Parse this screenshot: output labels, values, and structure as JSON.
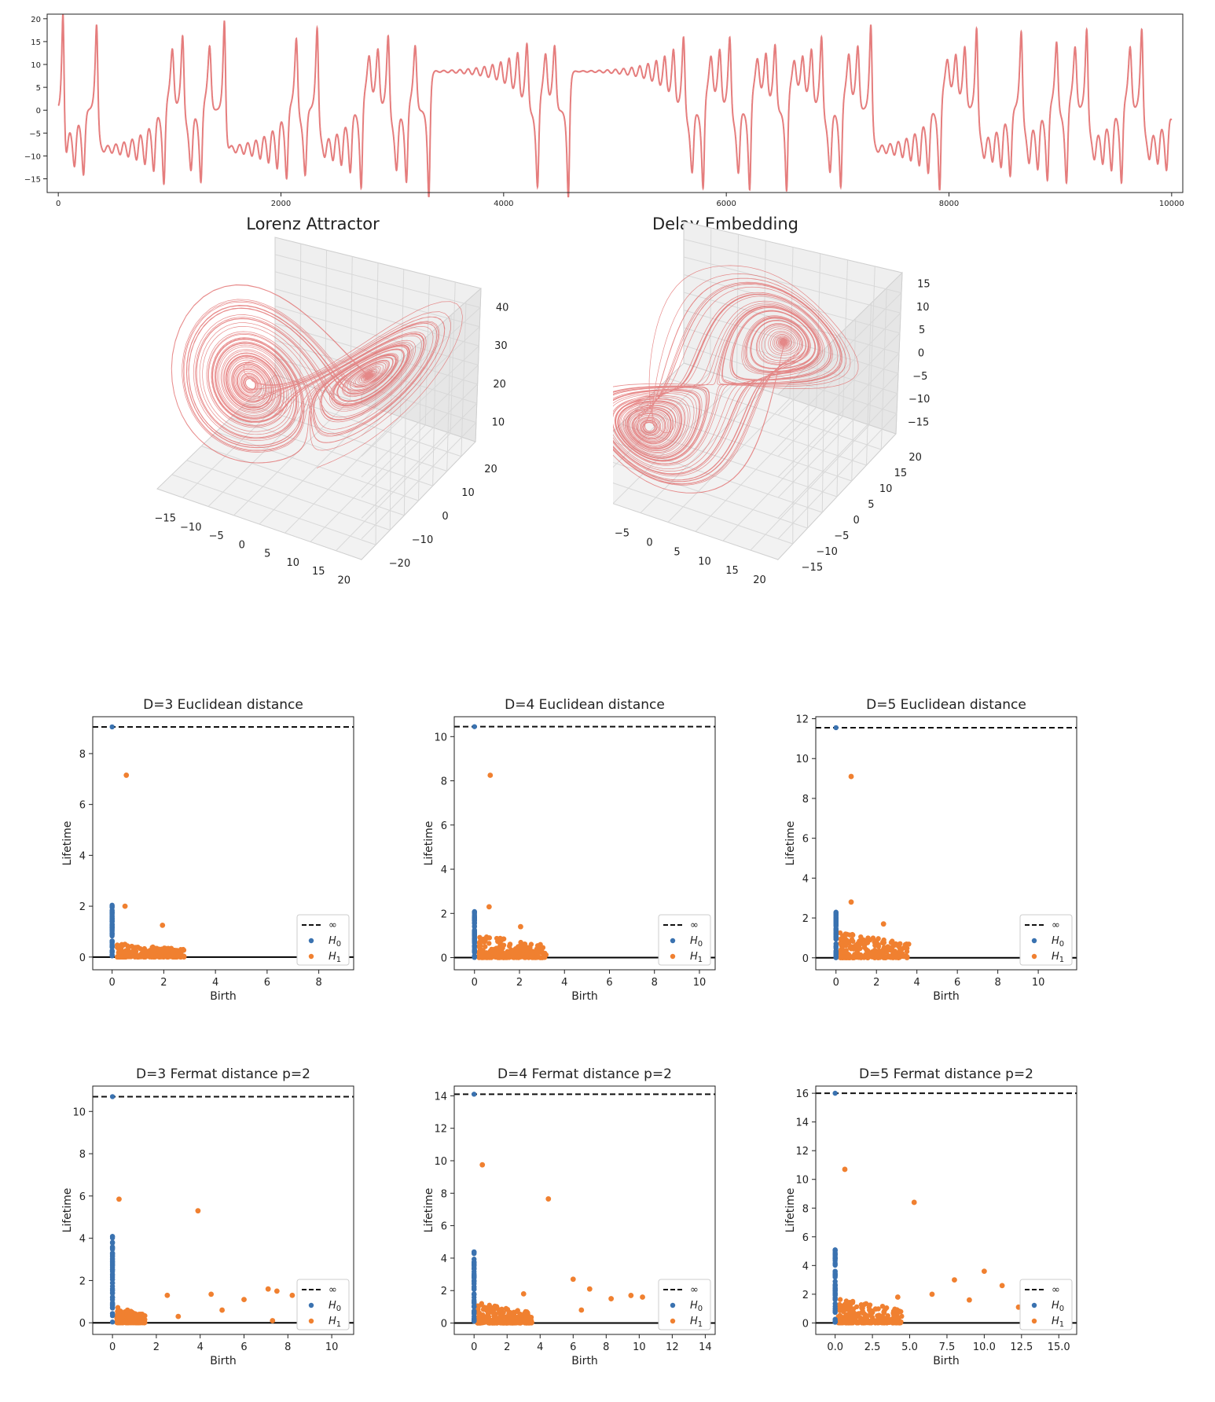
{
  "colors": {
    "trace": "#e06666",
    "h0": "#3a72b0",
    "h1": "#f08030",
    "inf": "#111111"
  },
  "chart_data": [
    {
      "id": "time-series",
      "type": "line",
      "title": "",
      "xlim": [
        -100,
        10100
      ],
      "ylim": [
        -18,
        21
      ],
      "xticks": [
        0,
        2000,
        4000,
        6000,
        8000,
        10000
      ],
      "yticks": [
        -15,
        -10,
        -5,
        0,
        5,
        10,
        15,
        20
      ],
      "description_samples": 10000
    },
    {
      "id": "lorenz-attractor",
      "type": "line3d",
      "title": "Lorenz Attractor",
      "xticks": [
        -15,
        -10,
        -5,
        0,
        5,
        10,
        15,
        20
      ],
      "yticks": [
        -20,
        -10,
        0,
        10,
        20
      ],
      "zticks": [
        10,
        20,
        30,
        40
      ]
    },
    {
      "id": "delay-embedding",
      "type": "line3d",
      "title": "Delay Embedding",
      "xticks": [
        -15,
        -10,
        -5,
        0,
        5,
        10,
        15,
        20
      ],
      "yticks": [
        -15,
        -10,
        -5,
        0,
        5,
        10,
        15,
        20
      ],
      "zticks": [
        -15,
        -10,
        -5,
        0,
        5,
        10,
        15
      ]
    },
    {
      "id": "pd-d3-euclid",
      "type": "scatter",
      "title": "D=3 Euclidean distance",
      "xlabel": "Birth",
      "ylabel": "Lifetime",
      "xlim": [
        -0.75,
        9.35
      ],
      "ylim": [
        -0.5,
        9.45
      ],
      "xticks": [
        0,
        2,
        4,
        6,
        8
      ],
      "yticks": [
        0,
        2,
        4,
        6,
        8
      ],
      "inf": 9.05,
      "legend": [
        "∞",
        "H0",
        "H1"
      ],
      "legend_loc": "lower right",
      "h0_max": 2.05,
      "h1_outliers": [
        [
          0.55,
          7.15
        ],
        [
          0.5,
          2.0
        ],
        [
          1.95,
          1.25
        ]
      ],
      "h1_cluster": {
        "xmax": 2.8,
        "ymax": 0.6
      }
    },
    {
      "id": "pd-d4-euclid",
      "type": "scatter",
      "title": "D=4 Euclidean distance",
      "xlabel": "Birth",
      "ylabel": "Lifetime",
      "xlim": [
        -0.9,
        10.7
      ],
      "ylim": [
        -0.55,
        10.9
      ],
      "xticks": [
        0,
        2,
        4,
        6,
        8,
        10
      ],
      "yticks": [
        0,
        2,
        4,
        6,
        8,
        10
      ],
      "inf": 10.45,
      "legend": [
        "∞",
        "H0",
        "H1"
      ],
      "legend_loc": "lower right",
      "h0_max": 2.1,
      "h1_outliers": [
        [
          0.7,
          8.25
        ],
        [
          0.65,
          2.3
        ],
        [
          2.05,
          1.4
        ]
      ],
      "h1_cluster": {
        "xmax": 3.2,
        "ymax": 1.1
      }
    },
    {
      "id": "pd-d5-euclid",
      "type": "scatter",
      "title": "D=5 Euclidean distance",
      "xlabel": "Birth",
      "ylabel": "Lifetime",
      "xlim": [
        -1.0,
        11.9
      ],
      "ylim": [
        -0.6,
        12.1
      ],
      "xticks": [
        0,
        2,
        4,
        6,
        8,
        10
      ],
      "yticks": [
        0,
        2,
        4,
        6,
        8,
        10,
        12
      ],
      "inf": 11.55,
      "legend": [
        "∞",
        "H0",
        "H1"
      ],
      "legend_loc": "lower right",
      "h0_max": 2.3,
      "h1_outliers": [
        [
          0.75,
          9.1
        ],
        [
          0.75,
          2.8
        ],
        [
          2.35,
          1.7
        ]
      ],
      "h1_cluster": {
        "xmax": 3.6,
        "ymax": 1.4
      }
    },
    {
      "id": "pd-d3-fermat",
      "type": "scatter",
      "title": "D=3 Fermat distance p=2",
      "xlabel": "Birth",
      "ylabel": "Lifetime",
      "xlim": [
        -0.9,
        11.0
      ],
      "ylim": [
        -0.55,
        11.2
      ],
      "xticks": [
        0,
        2,
        4,
        6,
        8,
        10
      ],
      "yticks": [
        0,
        2,
        4,
        6,
        8,
        10
      ],
      "inf": 10.7,
      "legend": [
        "∞",
        "H0",
        "H1"
      ],
      "legend_loc": "lower right",
      "h0_max": 4.1,
      "h1_outliers": [
        [
          0.3,
          5.85
        ],
        [
          3.9,
          5.3
        ],
        [
          7.1,
          1.6
        ],
        [
          7.5,
          1.5
        ],
        [
          8.2,
          1.3
        ],
        [
          4.5,
          1.35
        ],
        [
          6.0,
          1.1
        ],
        [
          2.5,
          1.3
        ],
        [
          3.0,
          0.3
        ],
        [
          7.3,
          0.1
        ],
        [
          5.0,
          0.6
        ]
      ],
      "h1_cluster": {
        "xmax": 1.5,
        "ymax": 0.8
      }
    },
    {
      "id": "pd-d4-fermat",
      "type": "scatter",
      "title": "D=4 Fermat distance p=2",
      "xlabel": "Birth",
      "ylabel": "Lifetime",
      "xlim": [
        -1.2,
        14.6
      ],
      "ylim": [
        -0.7,
        14.6
      ],
      "xticks": [
        0,
        2,
        4,
        6,
        8,
        10,
        12,
        14
      ],
      "yticks": [
        0,
        2,
        4,
        6,
        8,
        10,
        12,
        14
      ],
      "inf": 14.1,
      "legend": [
        "∞",
        "H0",
        "H1"
      ],
      "legend_loc": "lower right",
      "h0_max": 4.5,
      "h1_outliers": [
        [
          0.5,
          9.75
        ],
        [
          4.5,
          7.65
        ],
        [
          6.0,
          2.7
        ],
        [
          7.0,
          2.1
        ],
        [
          9.5,
          1.7
        ],
        [
          10.2,
          1.6
        ],
        [
          8.3,
          1.5
        ],
        [
          12.0,
          0.1
        ],
        [
          6.5,
          0.8
        ],
        [
          3.0,
          1.8
        ]
      ],
      "h1_cluster": {
        "xmax": 3.5,
        "ymax": 1.3
      }
    },
    {
      "id": "pd-d5-fermat",
      "type": "scatter",
      "title": "D=5 Fermat distance p=2",
      "xlabel": "Birth",
      "ylabel": "Lifetime",
      "xlim": [
        -1.3,
        16.2
      ],
      "ylim": [
        -0.8,
        16.5
      ],
      "xticks": [
        0.0,
        2.5,
        5.0,
        7.5,
        10.0,
        12.5,
        15.0
      ],
      "yticks": [
        0,
        2,
        4,
        6,
        8,
        10,
        12,
        14,
        16
      ],
      "inf": 16.0,
      "legend": [
        "∞",
        "H0",
        "H1"
      ],
      "legend_loc": "lower right",
      "h0_max": 5.1,
      "h1_outliers": [
        [
          0.65,
          10.7
        ],
        [
          5.3,
          8.4
        ],
        [
          10.0,
          3.6
        ],
        [
          8.0,
          3.0
        ],
        [
          11.2,
          2.6
        ],
        [
          12.3,
          1.1
        ],
        [
          13.6,
          0.1
        ],
        [
          9.0,
          1.6
        ],
        [
          6.5,
          2.0
        ],
        [
          4.2,
          1.8
        ]
      ],
      "h1_cluster": {
        "xmax": 4.5,
        "ymax": 1.8
      }
    }
  ]
}
